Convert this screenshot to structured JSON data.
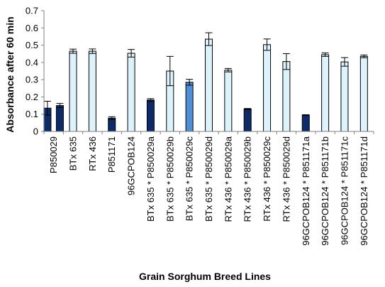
{
  "chart_data": {
    "type": "bar",
    "title": "",
    "xlabel": "Grain Sorghum Breed Lines",
    "ylabel": "Absorbance after 60 min",
    "ylim": [
      0,
      0.7
    ],
    "yticks": [
      "0",
      "0.1",
      "0.2",
      "0.3",
      "0.4",
      "0.5",
      "0.6",
      "0.7"
    ],
    "grid": false,
    "legend": "none",
    "colors": {
      "dark": "#0d2b6b",
      "medium": "#4f8fd8",
      "light": "#ddf3fb",
      "outline": "#000000"
    },
    "categories": [
      "P850029",
      "BTx 635",
      "RTx 436",
      "P851171",
      "96GCPOB124",
      "BTx 635 * P850029a",
      "BTx 635 * P850029b",
      "BTx 635 * P850029c",
      "BTx 635 * P850029d",
      "RTx 436 * P850029a",
      "RTx 436 * P850029b",
      "RTx 436 * P850029c",
      "RTx 436 * P850029d",
      "96GCPOB124 * P851171a",
      "96GCPOB124 * P851171b",
      "96GCPOB124 * P851171c",
      "96GCPOB124 * P851171d"
    ],
    "bars": [
      {
        "category_index": 0,
        "offset": -0.32,
        "value": 0.135,
        "error": 0.04,
        "color": "dark"
      },
      {
        "category_index": 0,
        "offset": 0.32,
        "value": 0.15,
        "error": 0.012,
        "color": "dark"
      },
      {
        "category_index": 1,
        "offset": 0,
        "value": 0.465,
        "error": 0.012,
        "color": "light"
      },
      {
        "category_index": 2,
        "offset": 0,
        "value": 0.465,
        "error": 0.013,
        "color": "light"
      },
      {
        "category_index": 3,
        "offset": 0,
        "value": 0.077,
        "error": 0.008,
        "color": "dark"
      },
      {
        "category_index": 4,
        "offset": 0,
        "value": 0.453,
        "error": 0.022,
        "color": "light"
      },
      {
        "category_index": 5,
        "offset": 0,
        "value": 0.182,
        "error": 0.008,
        "color": "dark"
      },
      {
        "category_index": 6,
        "offset": 0,
        "value": 0.35,
        "error": 0.085,
        "color": "light"
      },
      {
        "category_index": 7,
        "offset": 0,
        "value": 0.285,
        "error": 0.017,
        "color": "medium"
      },
      {
        "category_index": 8,
        "offset": 0,
        "value": 0.535,
        "error": 0.037,
        "color": "light"
      },
      {
        "category_index": 9,
        "offset": 0,
        "value": 0.355,
        "error": 0.01,
        "color": "light"
      },
      {
        "category_index": 10,
        "offset": 0,
        "value": 0.13,
        "error": 0.003,
        "color": "dark"
      },
      {
        "category_index": 11,
        "offset": 0,
        "value": 0.503,
        "error": 0.033,
        "color": "light"
      },
      {
        "category_index": 12,
        "offset": 0,
        "value": 0.405,
        "error": 0.046,
        "color": "light"
      },
      {
        "category_index": 13,
        "offset": 0,
        "value": 0.095,
        "error": 0.002,
        "color": "dark"
      },
      {
        "category_index": 14,
        "offset": 0,
        "value": 0.445,
        "error": 0.01,
        "color": "light"
      },
      {
        "category_index": 15,
        "offset": 0,
        "value": 0.403,
        "error": 0.025,
        "color": "light"
      },
      {
        "category_index": 16,
        "offset": 0,
        "value": 0.435,
        "error": 0.008,
        "color": "light"
      }
    ]
  }
}
